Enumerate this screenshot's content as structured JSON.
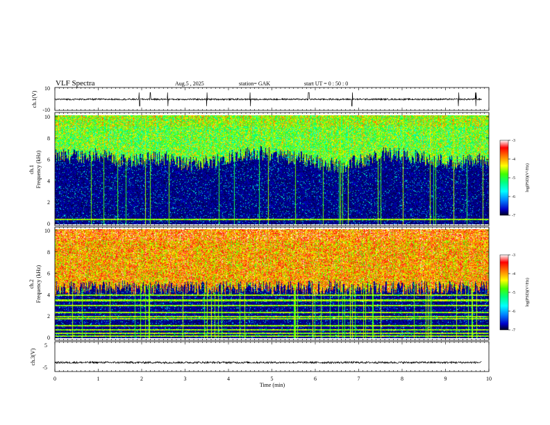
{
  "header": {
    "title": "VLF  Spectra",
    "date": "Aug.5  , 2025",
    "station": "station= GAK",
    "start": "start  UT  =    0  : 50 : 0"
  },
  "colorbar": {
    "label": "log(PSD)(V²/Hz)",
    "ticks": [
      "-3",
      "-4",
      "-5",
      "-6",
      "-7"
    ],
    "range": [
      -7,
      -3
    ],
    "colors": [
      "#000020",
      "#0000c8",
      "#0080ff",
      "#00ffff",
      "#00ff80",
      "#40ff00",
      "#ffff00",
      "#ff8000",
      "#ff0000",
      "#ffffff"
    ]
  },
  "chart_data": [
    {
      "type": "line",
      "id": "ch1_waveform",
      "ylabel": "ch.1(V)",
      "ylim": [
        -10,
        10
      ],
      "ytick_labels": [
        "10",
        "-10"
      ],
      "x": [
        0,
        10
      ],
      "baseline": 0,
      "description_values": {
        "typical_amplitude_V": 1,
        "spike_times_min": [
          1.95,
          2.2,
          2.6,
          3.5,
          4.5,
          5.85,
          6.85,
          9.3,
          9.7
        ]
      }
    },
    {
      "type": "heatmap",
      "id": "ch1_spectrogram",
      "ylabel": "ch.1\nFrequency  (kHz)",
      "ylabel_lines": [
        "ch.1",
        "Frequency  (kHz)"
      ],
      "ylim": [
        0,
        10
      ],
      "ytick_labels": [
        "0",
        "2",
        "4",
        "6",
        "8",
        "10"
      ],
      "xlim": [
        0,
        9.83
      ],
      "zlim": [
        -7,
        -3
      ],
      "time_profile_min": [
        0,
        0.5,
        1,
        1.5,
        2,
        2.5,
        3,
        3.5,
        4,
        4.5,
        5,
        5.5,
        6,
        6.5,
        7,
        7.5,
        8,
        8.5,
        9,
        9.5,
        9.83
      ],
      "noise_floor_kHz": [
        6.2,
        6.3,
        6.4,
        5.8,
        6.0,
        6.1,
        5.5,
        5.8,
        6.3,
        6.6,
        6.4,
        6.2,
        5.7,
        5.4,
        5.9,
        6.5,
        6.3,
        6.0,
        5.7,
        5.9,
        6.0
      ],
      "typical_psd_high_band": -4.8
    },
    {
      "type": "heatmap",
      "id": "ch2_spectrogram",
      "ylabel": "ch.2\nFrequency  (kHz)",
      "ylabel_lines": [
        "ch.2",
        "Frequency  (kHz)"
      ],
      "ylim": [
        0,
        10
      ],
      "ytick_labels": [
        "0",
        "2",
        "4",
        "6",
        "8",
        "10"
      ],
      "xlim": [
        0,
        9.83
      ],
      "zlim": [
        -7,
        -3
      ],
      "noise_floor_kHz": 4.6,
      "typical_psd_high_band": -4.0,
      "line_frequencies_kHz": [
        0.2,
        0.5,
        0.8,
        1.2,
        1.8,
        2.0,
        2.4,
        3.0,
        3.5,
        4.0
      ]
    },
    {
      "type": "line",
      "id": "ch3_waveform",
      "ylabel": "ch.3(V)",
      "ylim": [
        -5,
        5
      ],
      "ytick_labels": [
        "5",
        "-5"
      ],
      "baseline": -2,
      "amplitude": 0.3
    }
  ],
  "xaxis": {
    "label": "Time  (min)",
    "ticks": [
      "0",
      "1",
      "2",
      "3",
      "4",
      "5",
      "6",
      "7",
      "8",
      "9",
      "10"
    ],
    "range": [
      0,
      10
    ]
  }
}
